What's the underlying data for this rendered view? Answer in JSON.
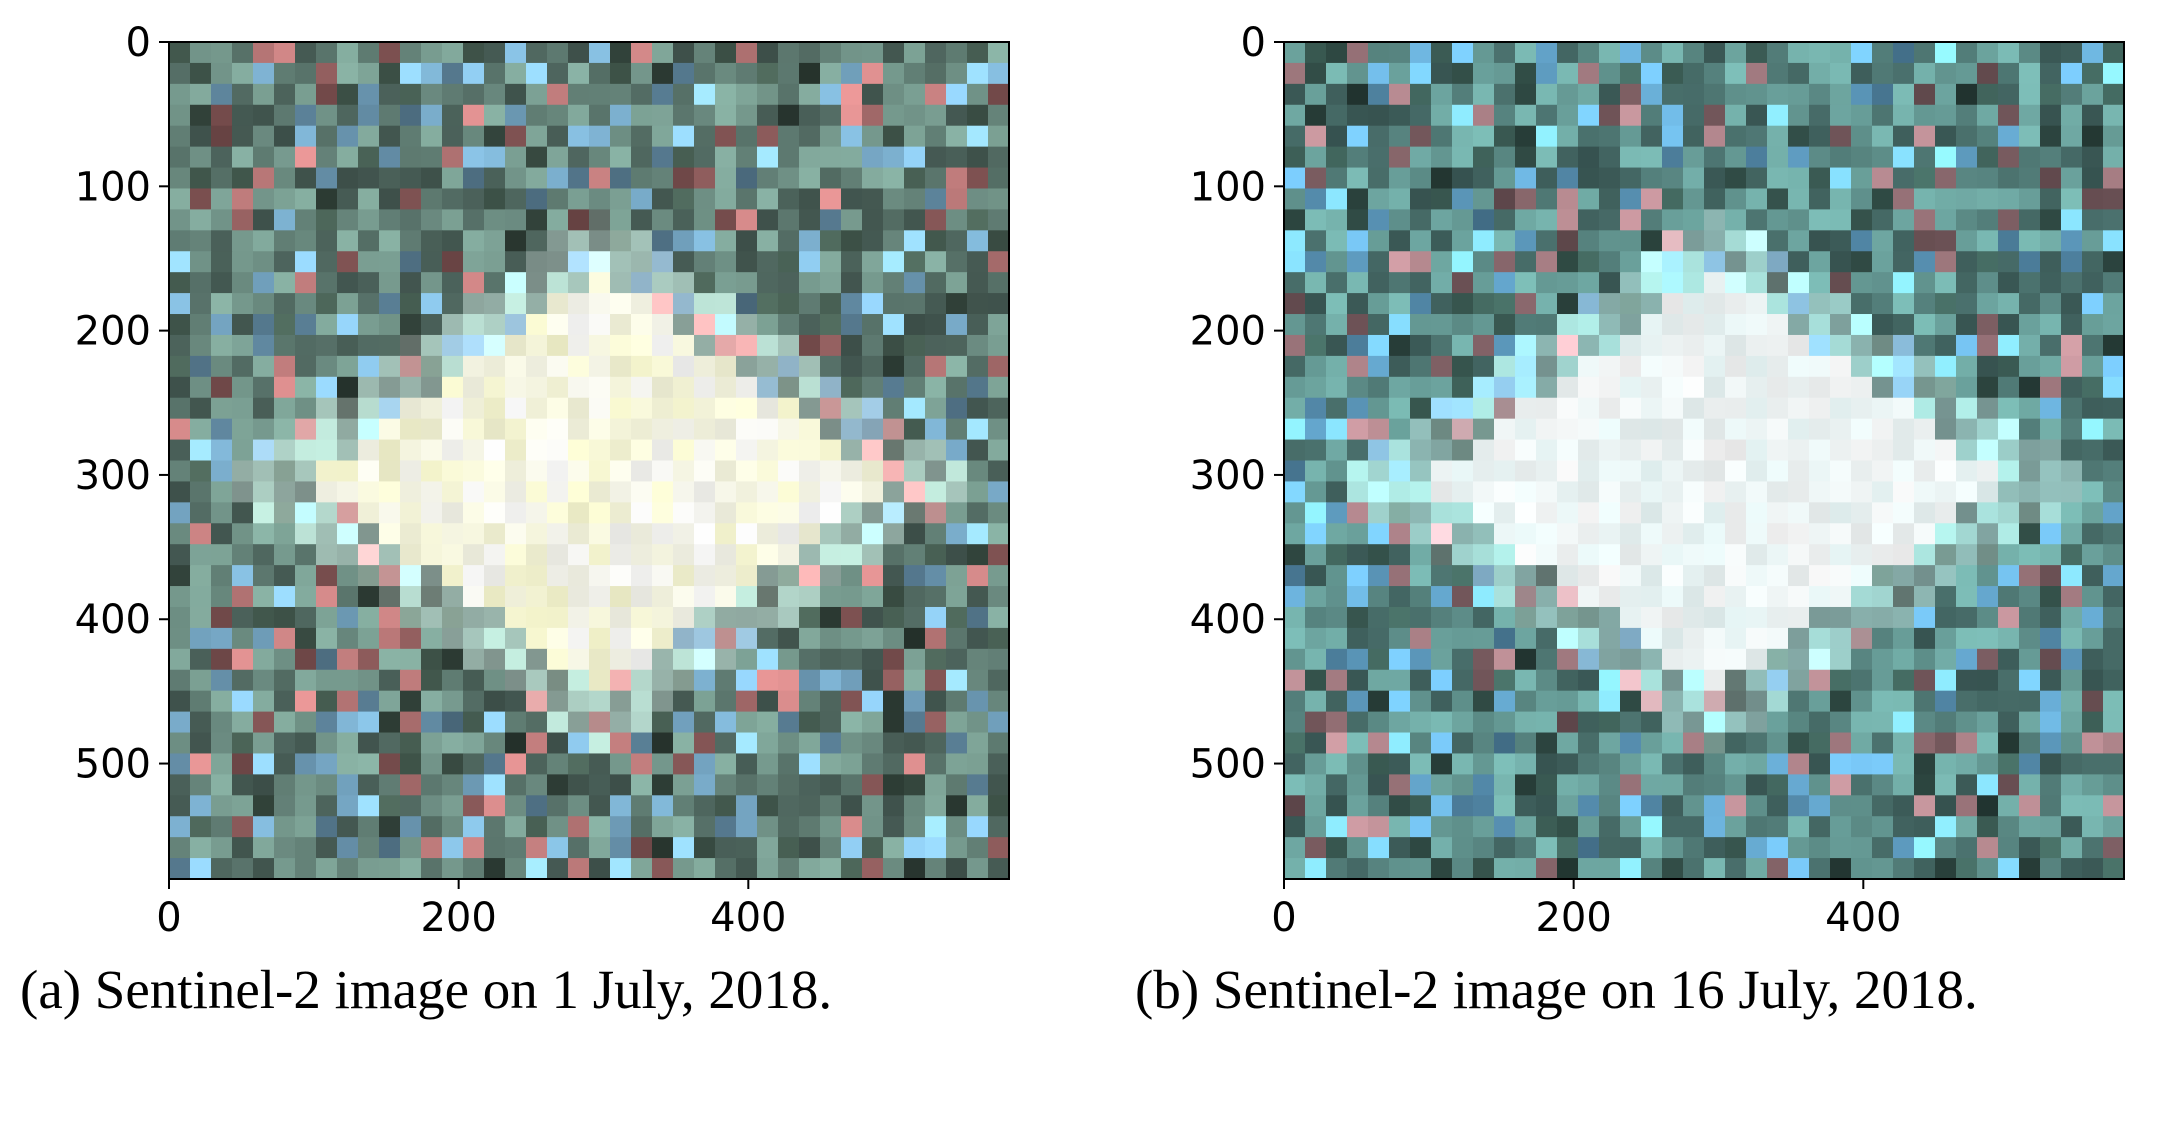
{
  "chart_data": [
    {
      "type": "image",
      "caption": "(a) Sentinel-2 image on 1 July, 2018.",
      "xlim": [
        0,
        580
      ],
      "ylim": [
        0,
        580
      ],
      "y_inverted": true,
      "xticks": [
        0,
        200,
        400
      ],
      "yticks": [
        0,
        100,
        200,
        300,
        400,
        500
      ]
    },
    {
      "type": "image",
      "caption": "(b) Sentinel-2 image on 16 July, 2018.",
      "xlim": [
        0,
        580
      ],
      "ylim": [
        0,
        580
      ],
      "y_inverted": true,
      "xticks": [
        0,
        200,
        400
      ],
      "yticks": [
        0,
        100,
        200,
        300,
        400,
        500
      ]
    }
  ]
}
